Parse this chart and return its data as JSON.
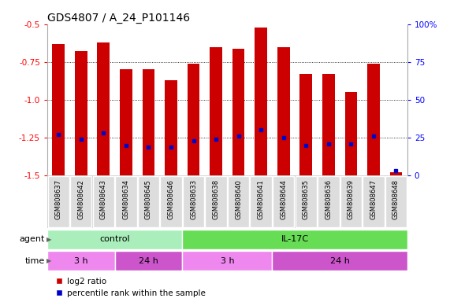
{
  "title": "GDS4807 / A_24_P101146",
  "samples": [
    "GSM808637",
    "GSM808642",
    "GSM808643",
    "GSM808634",
    "GSM808645",
    "GSM808646",
    "GSM808633",
    "GSM808638",
    "GSM808640",
    "GSM808641",
    "GSM808644",
    "GSM808635",
    "GSM808636",
    "GSM808639",
    "GSM808647",
    "GSM808648"
  ],
  "log2_ratios": [
    -0.63,
    -0.68,
    -0.62,
    -0.8,
    -0.8,
    -0.87,
    -0.76,
    -0.65,
    -0.66,
    -0.52,
    -0.65,
    -0.83,
    -0.83,
    -0.95,
    -0.76,
    -1.48
  ],
  "percentile_ranks": [
    27,
    24,
    28,
    20,
    19,
    19,
    23,
    24,
    26,
    30,
    25,
    20,
    21,
    21,
    26,
    3
  ],
  "ylim_left": [
    -1.5,
    -0.5
  ],
  "ylim_right": [
    0,
    100
  ],
  "yticks_left": [
    -1.5,
    -1.25,
    -1.0,
    -0.75,
    -0.5
  ],
  "yticks_right": [
    0,
    25,
    50,
    75,
    100
  ],
  "bar_color": "#cc0000",
  "dot_color": "#0000cc",
  "agent_control_samples": 6,
  "agent_control_label": "control",
  "agent_il17c_label": "IL-17C",
  "agent_control_color": "#aaeebb",
  "agent_il17c_color": "#66dd55",
  "time_groups": [
    {
      "label": "3 h",
      "start": 0,
      "end": 3,
      "color": "#ee88ee"
    },
    {
      "label": "24 h",
      "start": 3,
      "end": 6,
      "color": "#cc55cc"
    },
    {
      "label": "3 h",
      "start": 6,
      "end": 10,
      "color": "#ee88ee"
    },
    {
      "label": "24 h",
      "start": 10,
      "end": 16,
      "color": "#cc55cc"
    }
  ],
  "title_fontsize": 10,
  "tick_fontsize": 7.5,
  "sample_fontsize": 6,
  "row_fontsize": 8,
  "legend_fontsize": 7.5,
  "sample_label_bg": "#cccccc",
  "bar_width": 0.55
}
